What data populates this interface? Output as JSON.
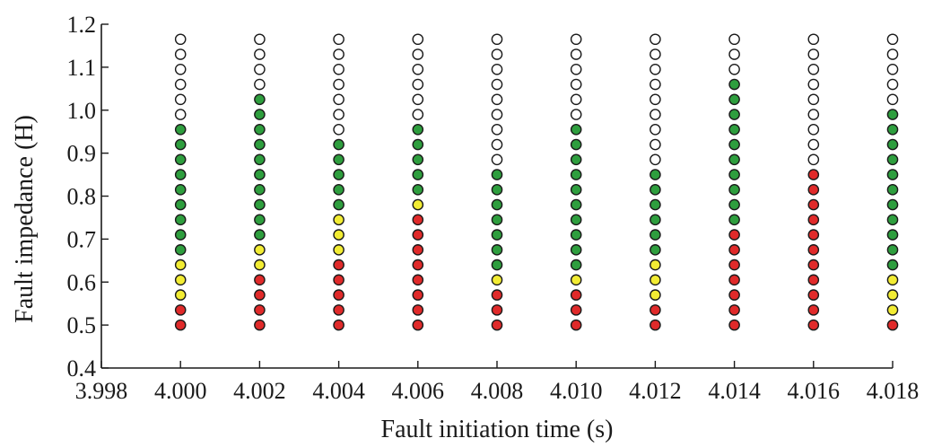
{
  "chart_data": {
    "type": "scatter",
    "title": "",
    "xlabel": "Fault initiation time (s)",
    "ylabel": "Fault impedance (H)",
    "xlim": [
      3.998,
      4.018
    ],
    "ylim": [
      0.4,
      1.2
    ],
    "x_ticks": [
      "3.998",
      "4.000",
      "4.002",
      "4.004",
      "4.006",
      "4.008",
      "4.010",
      "4.012",
      "4.014",
      "4.016",
      "4.018"
    ],
    "y_ticks": [
      "0.4",
      "0.5",
      "0.6",
      "0.7",
      "0.8",
      "0.9",
      "1.0",
      "1.1",
      "1.2"
    ],
    "grid": false,
    "legend": "none",
    "marker_colors": {
      "W": "#ffffff",
      "G": "#2e9e3e",
      "Y": "#f2ec33",
      "R": "#e02a2a"
    },
    "y_levels": [
      0.5,
      0.535,
      0.57,
      0.605,
      0.64,
      0.675,
      0.71,
      0.745,
      0.78,
      0.815,
      0.85,
      0.885,
      0.92,
      0.955,
      0.99,
      1.025,
      1.06,
      1.095,
      1.13,
      1.165
    ],
    "columns": [
      {
        "x": 4.0,
        "states": [
          "R",
          "R",
          "Y",
          "Y",
          "Y",
          "G",
          "G",
          "G",
          "G",
          "G",
          "G",
          "G",
          "G",
          "G",
          "W",
          "W",
          "W",
          "W",
          "W",
          "W"
        ]
      },
      {
        "x": 4.002,
        "states": [
          "R",
          "R",
          "R",
          "R",
          "Y",
          "Y",
          "G",
          "G",
          "G",
          "G",
          "G",
          "G",
          "G",
          "G",
          "G",
          "G",
          "W",
          "W",
          "W",
          "W"
        ]
      },
      {
        "x": 4.004,
        "states": [
          "R",
          "R",
          "R",
          "R",
          "R",
          "Y",
          "Y",
          "Y",
          "G",
          "G",
          "G",
          "G",
          "G",
          "W",
          "W",
          "W",
          "W",
          "W",
          "W",
          "W"
        ]
      },
      {
        "x": 4.006,
        "states": [
          "R",
          "R",
          "R",
          "R",
          "R",
          "R",
          "R",
          "R",
          "Y",
          "G",
          "G",
          "G",
          "G",
          "G",
          "W",
          "W",
          "W",
          "W",
          "W",
          "W"
        ]
      },
      {
        "x": 4.008,
        "states": [
          "R",
          "R",
          "R",
          "Y",
          "G",
          "G",
          "G",
          "G",
          "G",
          "G",
          "G",
          "W",
          "W",
          "W",
          "W",
          "W",
          "W",
          "W",
          "W",
          "W"
        ]
      },
      {
        "x": 4.01,
        "states": [
          "R",
          "R",
          "R",
          "Y",
          "G",
          "G",
          "G",
          "G",
          "G",
          "G",
          "G",
          "G",
          "G",
          "G",
          "W",
          "W",
          "W",
          "W",
          "W",
          "W"
        ]
      },
      {
        "x": 4.012,
        "states": [
          "R",
          "R",
          "Y",
          "Y",
          "Y",
          "G",
          "G",
          "G",
          "G",
          "G",
          "G",
          "W",
          "W",
          "W",
          "W",
          "W",
          "W",
          "W",
          "W",
          "W"
        ]
      },
      {
        "x": 4.014,
        "states": [
          "R",
          "R",
          "R",
          "R",
          "R",
          "R",
          "R",
          "G",
          "G",
          "G",
          "G",
          "G",
          "G",
          "G",
          "G",
          "G",
          "G",
          "W",
          "W",
          "W"
        ]
      },
      {
        "x": 4.016,
        "states": [
          "R",
          "R",
          "R",
          "R",
          "R",
          "R",
          "R",
          "R",
          "R",
          "R",
          "R",
          "W",
          "W",
          "W",
          "W",
          "W",
          "W",
          "W",
          "W",
          "W"
        ]
      },
      {
        "x": 4.018,
        "states": [
          "R",
          "Y",
          "Y",
          "Y",
          "G",
          "G",
          "G",
          "G",
          "G",
          "G",
          "G",
          "G",
          "G",
          "G",
          "G",
          "W",
          "W",
          "W",
          "W",
          "W"
        ]
      }
    ]
  }
}
